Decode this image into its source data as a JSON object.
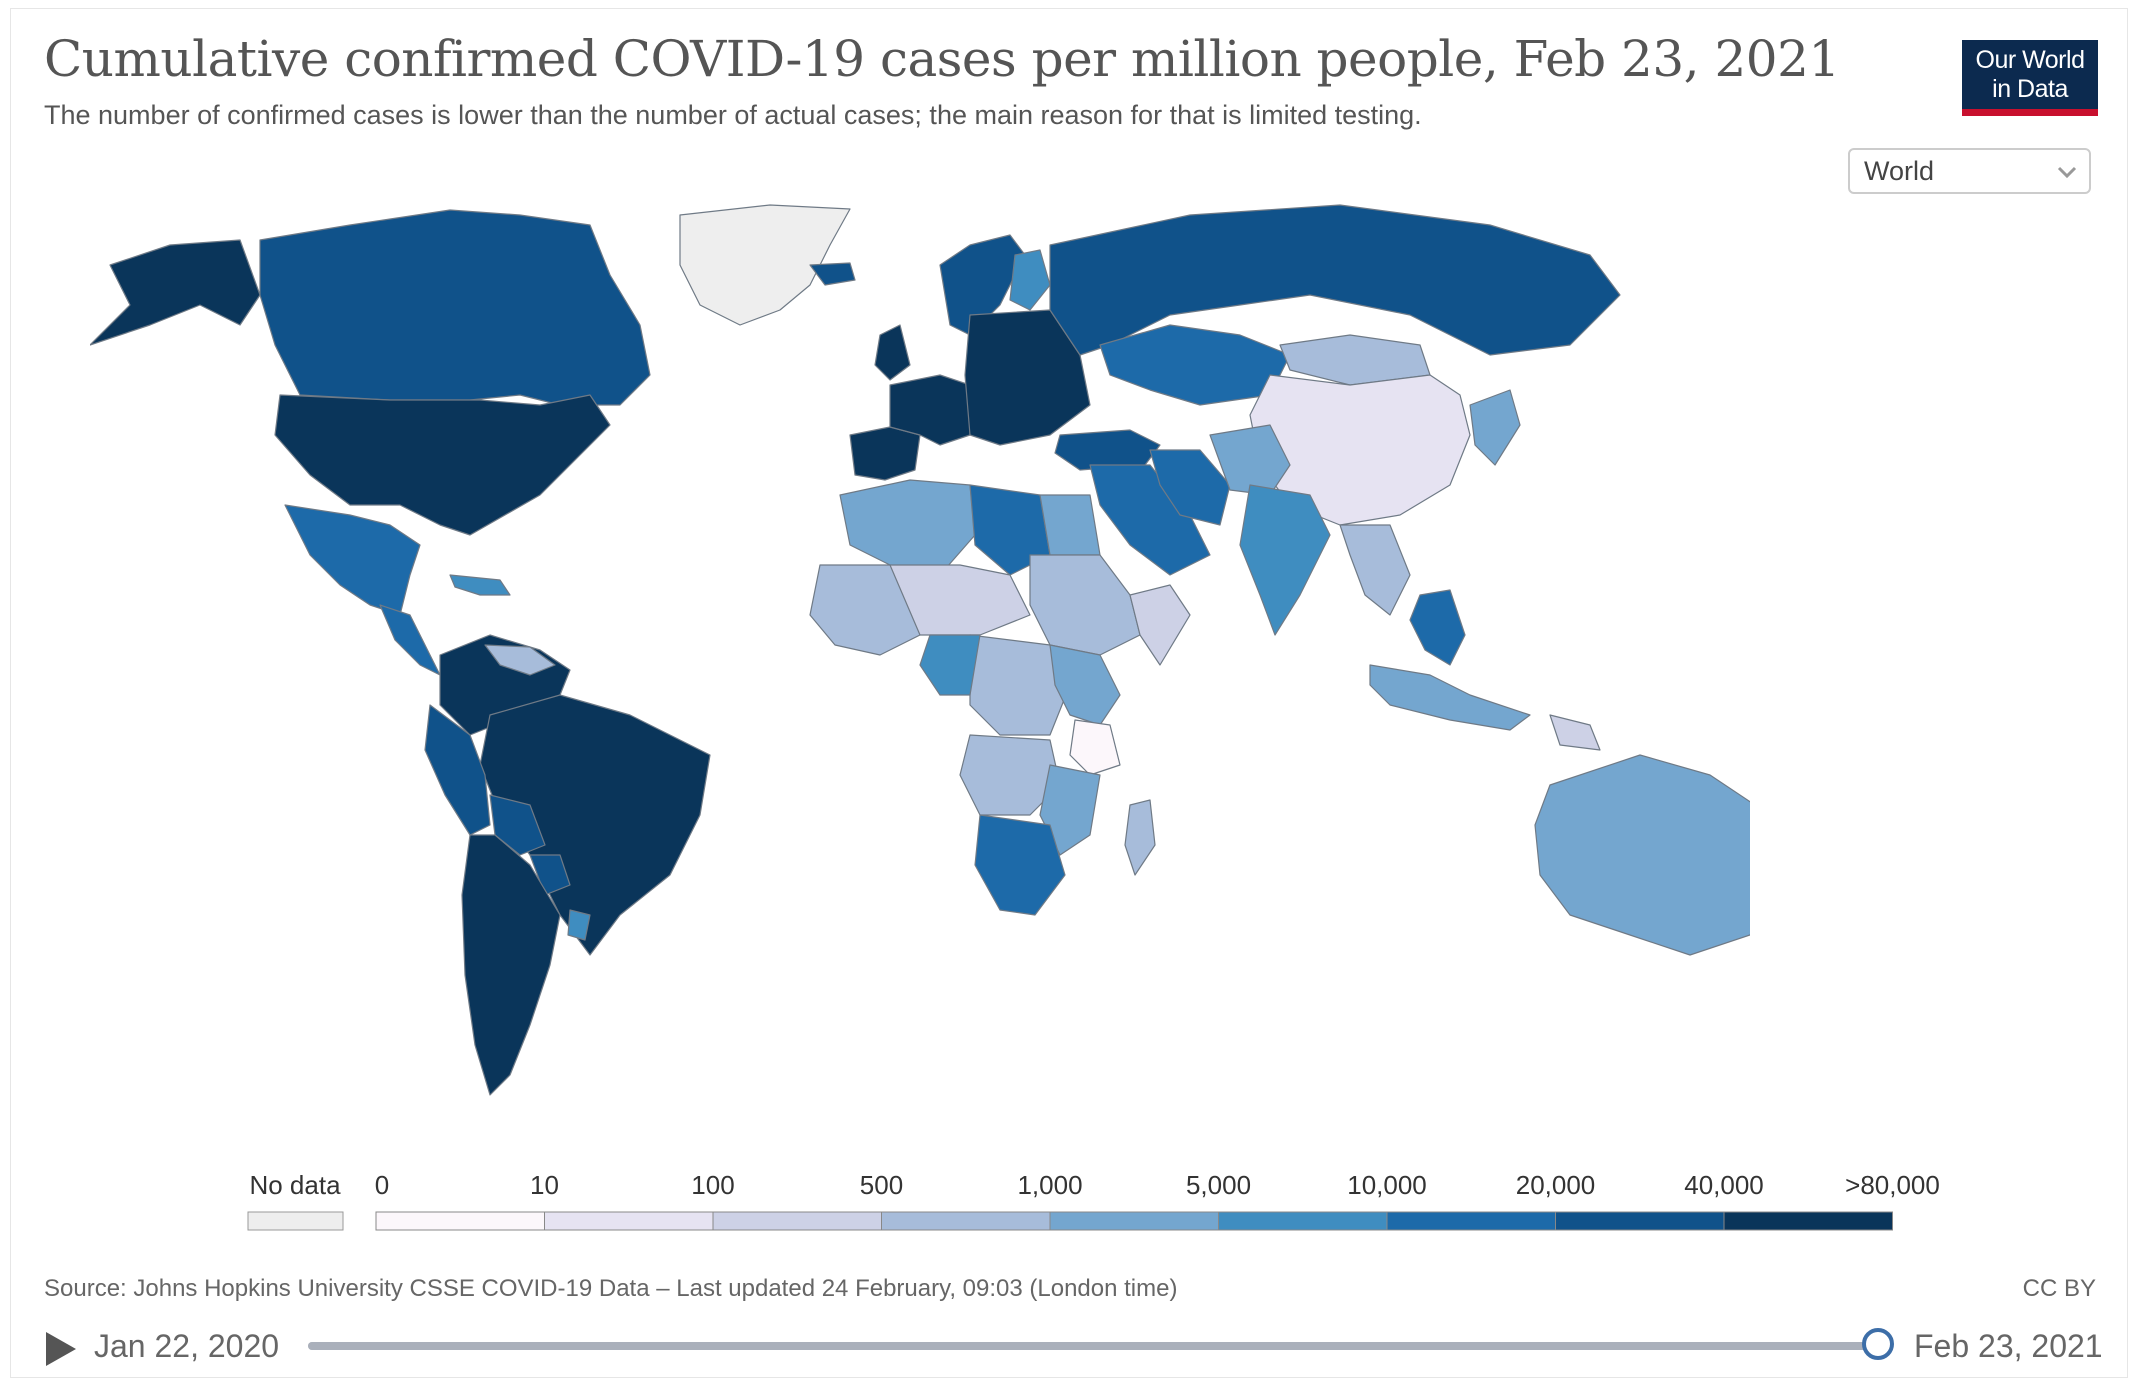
{
  "header": {
    "title": "Cumulative confirmed COVID-19 cases per million people, Feb 23, 2021",
    "subtitle": "The number of confirmed cases is lower than the number of actual cases; the main reason for that is limited testing."
  },
  "logo": {
    "line1": "Our World",
    "line2": "in Data"
  },
  "region_select": {
    "value": "World",
    "icon": "chevron-down-icon"
  },
  "legend": {
    "no_data_label": "No data",
    "no_data_color": "#eeeeee",
    "bins": [
      {
        "from": "0",
        "to": "10",
        "color": "#fcf7fb"
      },
      {
        "from": "10",
        "to": "100",
        "color": "#e6e3f2"
      },
      {
        "from": "100",
        "to": "500",
        "color": "#cdd1e6"
      },
      {
        "from": "500",
        "to": "1,000",
        "color": "#a7bcda"
      },
      {
        "from": "1,000",
        "to": "5,000",
        "color": "#74a6cf"
      },
      {
        "from": "5,000",
        "to": "10,000",
        "color": "#3f8dc0"
      },
      {
        "from": "10,000",
        "to": "20,000",
        "color": "#1d6aa9"
      },
      {
        "from": "20,000",
        "to": "40,000",
        "color": "#10528a"
      },
      {
        "from": "40,000",
        "to": ">80,000",
        "color": "#0a355a"
      }
    ],
    "tick_labels": [
      "0",
      "10",
      "100",
      "500",
      "1,000",
      "5,000",
      "10,000",
      "20,000",
      "40,000",
      ">80,000"
    ]
  },
  "footer": {
    "source": "Source: Johns Hopkins University CSSE COVID-19 Data – Last updated 24 February, 09:03 (London time)",
    "license": "CC BY"
  },
  "timeline": {
    "start_label": "Jan 22, 2020",
    "end_label": "Feb 23, 2021",
    "position": 1.0,
    "play_icon": "play-icon"
  },
  "map": {
    "name": "world-choropleth",
    "regions": [
      {
        "name": "greenland",
        "bin": "none"
      },
      {
        "name": "alaska",
        "bin": 8
      },
      {
        "name": "canada",
        "bin": 7
      },
      {
        "name": "usa",
        "bin": 8
      },
      {
        "name": "mexico",
        "bin": 6
      },
      {
        "name": "central-america",
        "bin": 6
      },
      {
        "name": "caribbean",
        "bin": 5
      },
      {
        "name": "colombia-venezuela",
        "bin": 8
      },
      {
        "name": "venezuela",
        "bin": 3
      },
      {
        "name": "brazil",
        "bin": 8
      },
      {
        "name": "peru-ecuador",
        "bin": 7
      },
      {
        "name": "bolivia",
        "bin": 7
      },
      {
        "name": "paraguay",
        "bin": 7
      },
      {
        "name": "argentina-chile",
        "bin": 8
      },
      {
        "name": "uruguay",
        "bin": 5
      },
      {
        "name": "iberia",
        "bin": 8
      },
      {
        "name": "western-europe",
        "bin": 8
      },
      {
        "name": "uk-ireland",
        "bin": 8
      },
      {
        "name": "scandinavia",
        "bin": 7
      },
      {
        "name": "finland",
        "bin": 5
      },
      {
        "name": "iceland",
        "bin": 7
      },
      {
        "name": "eastern-europe",
        "bin": 8
      },
      {
        "name": "russia",
        "bin": 7
      },
      {
        "name": "kazakhstan",
        "bin": 6
      },
      {
        "name": "mongolia",
        "bin": 3
      },
      {
        "name": "china",
        "bin": 1
      },
      {
        "name": "japan-korea",
        "bin": 4
      },
      {
        "name": "turkey-caucasus",
        "bin": 7
      },
      {
        "name": "middle-east",
        "bin": 6
      },
      {
        "name": "iran",
        "bin": 6
      },
      {
        "name": "central-asia",
        "bin": 4
      },
      {
        "name": "india",
        "bin": 5
      },
      {
        "name": "southeast-asia",
        "bin": 3
      },
      {
        "name": "indonesia",
        "bin": 4
      },
      {
        "name": "philippines-malaysia",
        "bin": 6
      },
      {
        "name": "papua-new-guinea",
        "bin": 2
      },
      {
        "name": "australia",
        "bin": 4
      },
      {
        "name": "new-zealand",
        "bin": 2
      },
      {
        "name": "morocco-algeria",
        "bin": 4
      },
      {
        "name": "libya",
        "bin": 6
      },
      {
        "name": "egypt",
        "bin": 4
      },
      {
        "name": "west-africa",
        "bin": 3
      },
      {
        "name": "sahel",
        "bin": 2
      },
      {
        "name": "sudan-ethiopia",
        "bin": 3
      },
      {
        "name": "somalia-yemen",
        "bin": 2
      },
      {
        "name": "central-africa",
        "bin": 3
      },
      {
        "name": "gabon-cameroon",
        "bin": 5
      },
      {
        "name": "east-africa",
        "bin": 4
      },
      {
        "name": "tanzania",
        "bin": 0
      },
      {
        "name": "angola-zambia",
        "bin": 3
      },
      {
        "name": "mozambique-malawi",
        "bin": 4
      },
      {
        "name": "southern-africa",
        "bin": 6
      },
      {
        "name": "madagascar",
        "bin": 3
      }
    ]
  }
}
